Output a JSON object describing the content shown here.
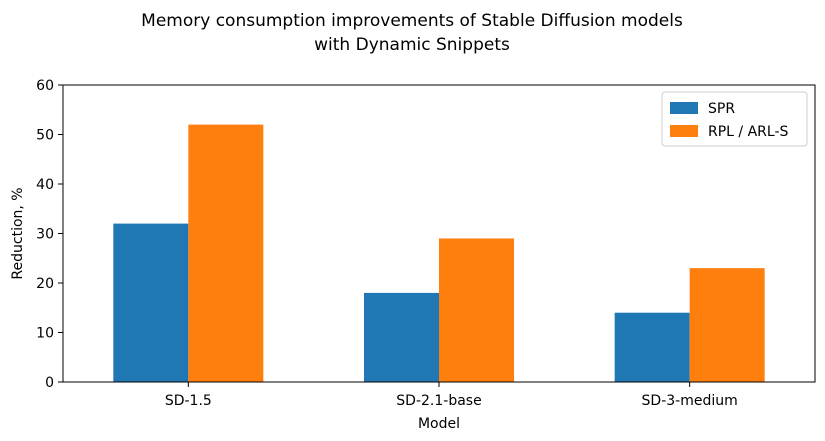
{
  "chart_data": {
    "type": "bar",
    "title": "Memory consumption improvements of Stable Diffusion models",
    "subtitle": "with Dynamic Snippets",
    "xlabel": "Model",
    "ylabel": "Reduction, %",
    "ylim": [
      0,
      60
    ],
    "yticks": [
      "0",
      "10",
      "20",
      "30",
      "40",
      "50",
      "60"
    ],
    "categories": [
      "SD-1.5",
      "SD-2.1-base",
      "SD-3-medium"
    ],
    "series": [
      {
        "name": "SPR",
        "values": [
          32,
          18,
          14
        ],
        "color": "#1f77b4"
      },
      {
        "name": "RPL / ARL-S",
        "values": [
          52,
          29,
          23
        ],
        "color": "#ff7f0e"
      }
    ],
    "legend": "top-right",
    "grid": false
  }
}
